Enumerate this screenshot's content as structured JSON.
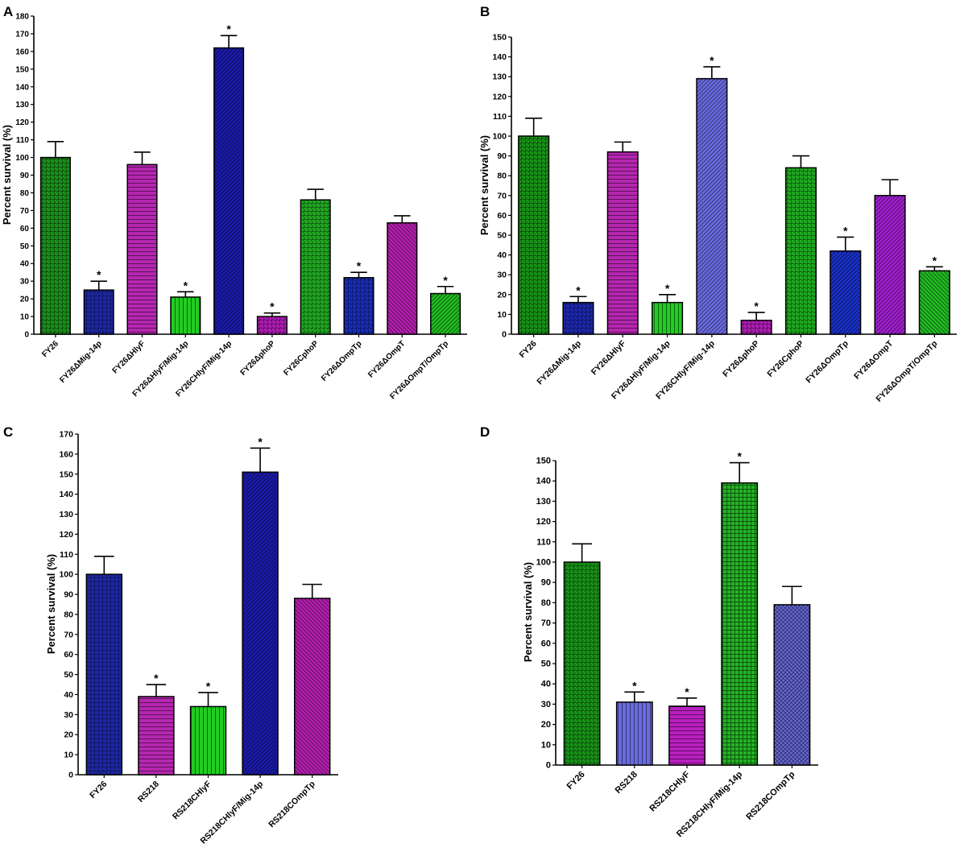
{
  "chart_data": [
    {
      "panel": "A",
      "type": "bar",
      "ylabel": "Percent survival (%)",
      "ylim": [
        0,
        180
      ],
      "ystep": 10,
      "categories": [
        "FY26",
        "FY26ΔMig-14p",
        "FY26ΔHlyF",
        "FY26ΔHlyF/Mig-14p",
        "FY26CHlyF/Mig-14p",
        "FY26ΔphoP",
        "FY26CphoP",
        "FY26ΔOmpTp",
        "FY26ΔOmpT",
        "FY26ΔOmpT/OmpTp"
      ],
      "values": [
        100,
        25,
        96,
        21,
        162,
        10,
        76,
        32,
        63,
        23
      ],
      "errors": [
        9,
        5,
        7,
        3,
        7,
        2,
        6,
        3,
        4,
        4
      ],
      "significant": [
        false,
        true,
        false,
        true,
        true,
        true,
        false,
        true,
        false,
        true
      ],
      "colors": [
        "#1a9a1a",
        "#1f2ab5",
        "#b527b0",
        "#22cc22",
        "#1a1aaa",
        "#b91fc0",
        "#22b422",
        "#1a30c8",
        "#b420b0",
        "#22bb22"
      ],
      "patterns": [
        "cross",
        "cross",
        "horiz",
        "vert",
        "diag",
        "cross",
        "cross",
        "cross",
        "diagback",
        "diag"
      ]
    },
    {
      "panel": "B",
      "type": "bar",
      "ylabel": "Percent survival (%)",
      "ylim": [
        0,
        150
      ],
      "ystep": 10,
      "categories": [
        "FY26",
        "FY26ΔMig-14p",
        "FY26ΔHlyF",
        "FY26ΔHlyF/Mig-14p",
        "FY26CHlyF/Mig-14p",
        "FY26ΔphoP",
        "FY26CphoP",
        "FY26ΔOmpTp",
        "FY26ΔOmpT",
        "FY26ΔOmpT/OmpTp"
      ],
      "values": [
        100,
        16,
        92,
        16,
        129,
        7,
        84,
        42,
        70,
        32
      ],
      "errors": [
        9,
        3,
        5,
        4,
        6,
        4,
        6,
        7,
        8,
        2
      ],
      "significant": [
        false,
        true,
        false,
        true,
        true,
        true,
        false,
        true,
        false,
        true
      ],
      "colors": [
        "#1a9a1a",
        "#1f2ab5",
        "#b527b0",
        "#22cc22",
        "#6a6ae0",
        "#b91fc0",
        "#22b422",
        "#1a30c8",
        "#a020d0",
        "#22bb22"
      ],
      "patterns": [
        "cross",
        "cross",
        "horiz",
        "vert",
        "diag",
        "cross",
        "cross",
        "diag",
        "diag",
        "diagback"
      ]
    },
    {
      "panel": "C",
      "type": "bar",
      "ylabel": "Percent survival (%)",
      "ylim": [
        0,
        170
      ],
      "ystep": 10,
      "categories": [
        "FY26",
        "RS218",
        "RS218CHlyF",
        "RS218CHlyF/Mig-14p",
        "RS218COmpTp"
      ],
      "values": [
        100,
        39,
        34,
        151,
        88
      ],
      "errors": [
        9,
        6,
        7,
        12,
        7
      ],
      "significant": [
        false,
        true,
        true,
        true,
        false
      ],
      "colors": [
        "#1f2ab5",
        "#b527b0",
        "#22cc22",
        "#1a1aaa",
        "#b420b0"
      ],
      "patterns": [
        "cross",
        "horiz",
        "vert",
        "diag",
        "diagback"
      ]
    },
    {
      "panel": "D",
      "type": "bar",
      "ylabel": "Percent survival (%)",
      "ylim": [
        0,
        150
      ],
      "ystep": 10,
      "categories": [
        "FY26",
        "RS218",
        "RS218CHlyF",
        "RS218CHlyF/Mig-14p",
        "RS218COmpTp"
      ],
      "values": [
        100,
        31,
        29,
        139,
        79
      ],
      "errors": [
        9,
        5,
        4,
        10,
        9
      ],
      "significant": [
        false,
        true,
        true,
        true,
        false
      ],
      "colors": [
        "#1a9a1a",
        "#6a6ae0",
        "#b91fc0",
        "#22b422",
        "#6a6ae0"
      ],
      "patterns": [
        "cross",
        "vert",
        "horiz",
        "grid",
        "crosshatch"
      ]
    }
  ],
  "significance_mark": "*"
}
